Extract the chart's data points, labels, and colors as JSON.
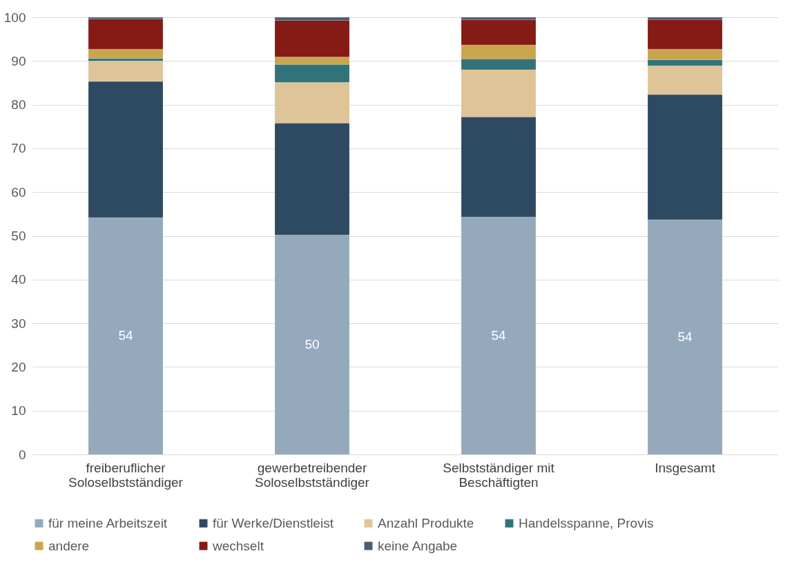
{
  "chart_data": {
    "type": "bar",
    "stacked": true,
    "categories": [
      "freiberuflicher Soloselbstständiger",
      "gewerbetreibender Soloselbstständiger",
      "Selbstständiger mit Beschäftigten",
      "Insgesamt"
    ],
    "ylim": [
      0,
      100
    ],
    "yticks": [
      0,
      10,
      20,
      30,
      40,
      50,
      60,
      70,
      80,
      90,
      100
    ],
    "grid": "y",
    "legend": "bottom",
    "series": [
      {
        "name": "für meine Arbeitszeit",
        "color": "#94a9bc",
        "values": [
          54.2,
          50.2,
          54.3,
          53.7
        ],
        "value_labels": [
          "54",
          "50",
          "54",
          "54"
        ]
      },
      {
        "name": "für Werke/Dienstleist",
        "color": "#2e4a63",
        "values": [
          31.1,
          25.6,
          22.9,
          28.6
        ]
      },
      {
        "name": "Anzahl Produkte",
        "color": "#dfc497",
        "values": [
          4.7,
          9.3,
          10.8,
          6.6
        ]
      },
      {
        "name": "Handelsspanne, Provis",
        "color": "#32737b",
        "values": [
          0.6,
          4.1,
          2.5,
          1.4
        ]
      },
      {
        "name": "andere",
        "color": "#c9a54e",
        "values": [
          2.1,
          1.7,
          3.2,
          2.4
        ]
      },
      {
        "name": "wechselt",
        "color": "#861a14",
        "values": [
          6.9,
          8.4,
          5.7,
          6.8
        ]
      },
      {
        "name": "keine Angabe",
        "color": "#4a5d74",
        "values": [
          0.4,
          0.7,
          0.6,
          0.5
        ]
      }
    ]
  }
}
